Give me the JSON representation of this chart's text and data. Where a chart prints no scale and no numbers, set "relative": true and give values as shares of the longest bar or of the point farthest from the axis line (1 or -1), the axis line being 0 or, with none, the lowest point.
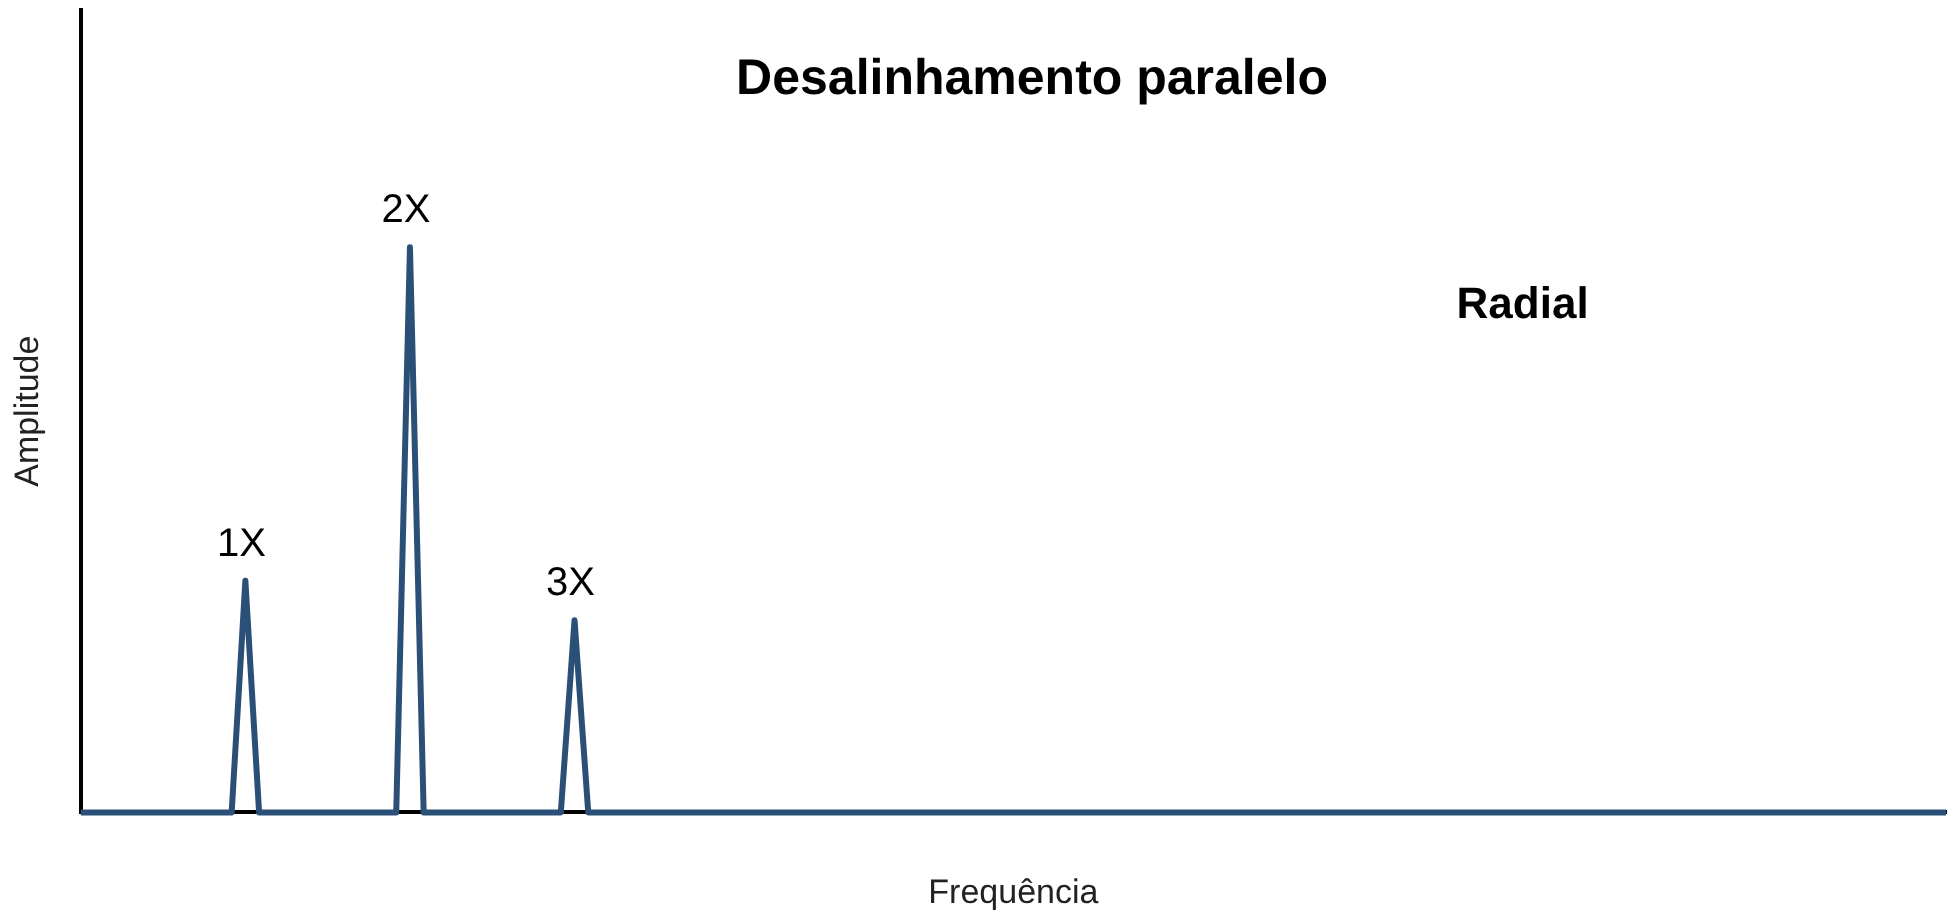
{
  "chart_data": {
    "type": "line",
    "relative": true,
    "title": "Desalinhamento paralelo",
    "xlabel": "Frequência",
    "ylabel": "Amplitude",
    "annotations": [
      "Radial",
      {
        "text": "1X",
        "y": 0.41
      },
      {
        "text": "2X",
        "y": 1
      },
      {
        "text": "3X",
        "y": 0.34
      }
    ],
    "grid": false,
    "legend": false,
    "marker": "none",
    "line_style": "solid",
    "categories": [
      null,
      null,
      null,
      null,
      null,
      null,
      null,
      null,
      null,
      null,
      null,
      null,
      null,
      null,
      null,
      null,
      null,
      null,
      null,
      null,
      null,
      null,
      null,
      null,
      null,
      null,
      null,
      null,
      null,
      null,
      null,
      null,
      null,
      null,
      null,
      null,
      null,
      null,
      null,
      null,
      null,
      null,
      null,
      null,
      null,
      null,
      null,
      null,
      null,
      null,
      null,
      null,
      null,
      null,
      null,
      null,
      null,
      null,
      null,
      null,
      null,
      null,
      null,
      null,
      null,
      null,
      null,
      null,
      null,
      null,
      null,
      null,
      null,
      null,
      null,
      null,
      null,
      null,
      null,
      null,
      null,
      null,
      null,
      null,
      null,
      null,
      null,
      null,
      null,
      null,
      null,
      null,
      null,
      null,
      null,
      null,
      null,
      null,
      null,
      null,
      null,
      null,
      null,
      null,
      null,
      null,
      null,
      null,
      null,
      null,
      null,
      null,
      null,
      null,
      null,
      null,
      null,
      null,
      null,
      null,
      null,
      null,
      null,
      null,
      null,
      null,
      null,
      null,
      null,
      null,
      null,
      null,
      null,
      null,
      null,
      null,
      null
    ],
    "series": [
      {
        "color": "#2b5077",
        "values": [
          0,
          0,
          0,
          0,
          0,
          0,
          0,
          0,
          0,
          0,
          0,
          0,
          0.41,
          0,
          0,
          0,
          0,
          0,
          0,
          0,
          0,
          0,
          0,
          0,
          1,
          0,
          0,
          0,
          0,
          0,
          0,
          0,
          0,
          0,
          0,
          0,
          0.34,
          0,
          0,
          0,
          0,
          0,
          0,
          0,
          0,
          0,
          0,
          0,
          0,
          0,
          0,
          0,
          0,
          0,
          0,
          0,
          0,
          0,
          0,
          0,
          0,
          0,
          0,
          0,
          0,
          0,
          0,
          0,
          0,
          0,
          0,
          0,
          0,
          0,
          0,
          0,
          0,
          0,
          0,
          0,
          0,
          0,
          0,
          0,
          0,
          0,
          0,
          0,
          0,
          0,
          0,
          0,
          0,
          0,
          0,
          0,
          0,
          0,
          0,
          0,
          0,
          0,
          0,
          0,
          0,
          0,
          0,
          0,
          0,
          0,
          0,
          0,
          0,
          0,
          0,
          0,
          0,
          0,
          0,
          0,
          0,
          0,
          0,
          0,
          0,
          0,
          0,
          0,
          0,
          0,
          0,
          0,
          0,
          0,
          0,
          0,
          0
        ]
      }
    ]
  }
}
